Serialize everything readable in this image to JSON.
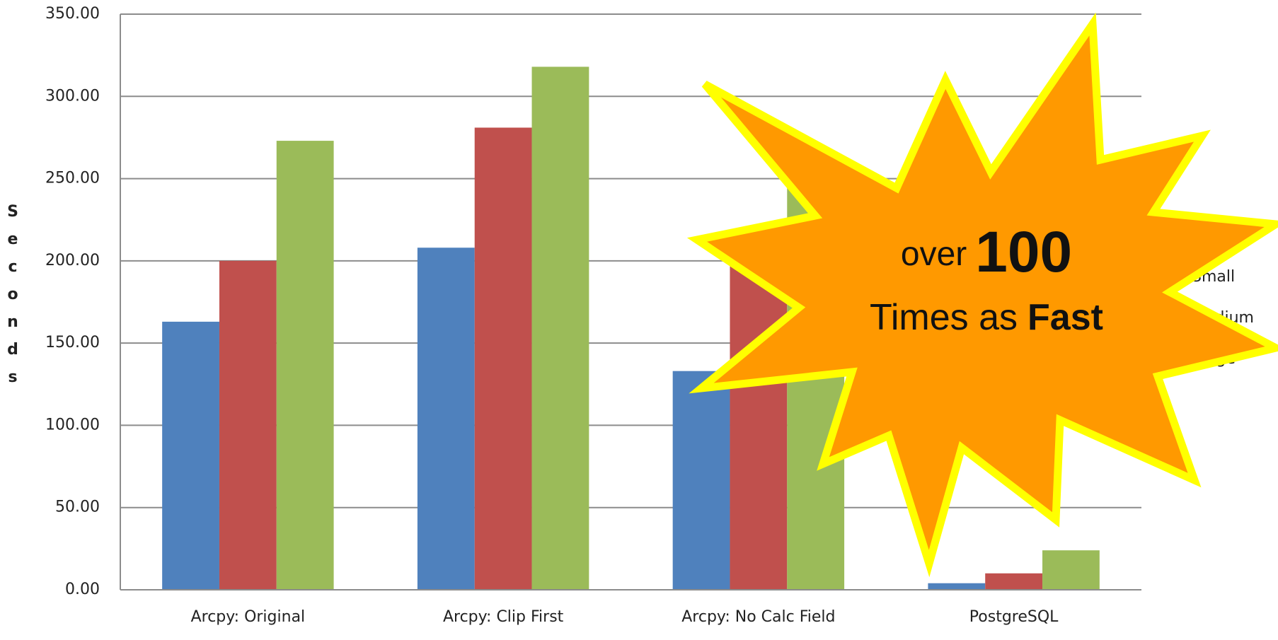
{
  "chart_data": {
    "type": "bar",
    "y_label": "Seconds",
    "categories": [
      "Arcpy: Original",
      "Arcpy: Clip First",
      "Arcpy: No Calc Field",
      "PostgreSQL"
    ],
    "series": [
      {
        "name": "Small",
        "color": "#4f81bd",
        "values": [
          163,
          208,
          133,
          4
        ]
      },
      {
        "name": "Medium",
        "color": "#c0504d",
        "values": [
          200,
          281,
          200,
          10
        ]
      },
      {
        "name": "Large",
        "color": "#9bbb59",
        "values": [
          273,
          318,
          249,
          24
        ]
      }
    ],
    "ylim": [
      0,
      350
    ],
    "yticks": [
      {
        "value": 0,
        "label": "0.00"
      },
      {
        "value": 50,
        "label": "50.00"
      },
      {
        "value": 100,
        "label": "100.00"
      },
      {
        "value": 150,
        "label": "150.00"
      },
      {
        "value": 200,
        "label": "200.00"
      },
      {
        "value": 250,
        "label": "250.00"
      },
      {
        "value": 300,
        "label": "300.00"
      },
      {
        "value": 350,
        "label": "350.00"
      }
    ],
    "grid": true,
    "legend": "right",
    "annotation": {
      "line1": "over",
      "number": "100",
      "line2": "Times as",
      "emphasis": "Fast"
    }
  }
}
